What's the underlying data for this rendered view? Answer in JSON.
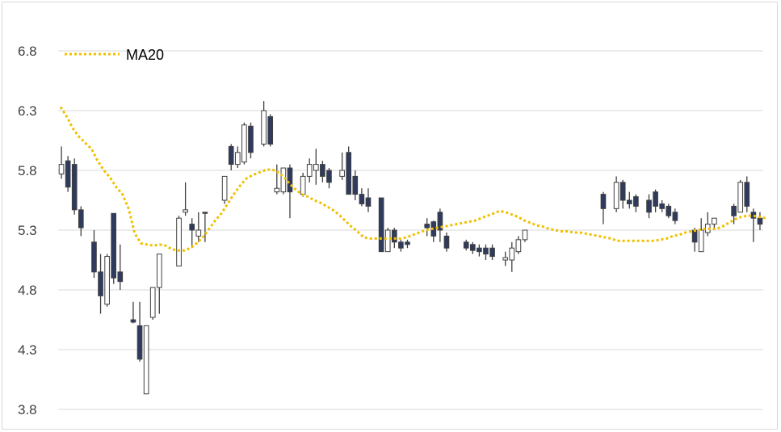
{
  "chart_data": {
    "type": "candlestick",
    "yticks": [
      "3.8",
      "4.3",
      "4.8",
      "5.3",
      "5.8",
      "6.3",
      "6.8"
    ],
    "ylim": [
      3.8,
      6.8
    ],
    "grid": true,
    "legend": {
      "position": "top-left",
      "entries": [
        "MA20"
      ]
    },
    "colors": {
      "up_fill": "#ffffff",
      "down_fill": "#2e3b5e",
      "candle_border": "#404040",
      "ma_line": "#f0c000",
      "grid": "#d9d9d9"
    },
    "series": [
      {
        "name": "MA20",
        "values": [
          6.33,
          6.25,
          6.15,
          6.08,
          6.03,
          5.98,
          5.88,
          5.8,
          5.74,
          5.66,
          5.6,
          5.48,
          5.27,
          5.19,
          5.18,
          5.17,
          5.18,
          5.17,
          5.14,
          5.13,
          5.13,
          5.15,
          5.19,
          5.24,
          5.31,
          5.38,
          5.44,
          5.52,
          5.6,
          5.67,
          5.73,
          5.76,
          5.78,
          5.8,
          5.81,
          5.79,
          5.75,
          5.69,
          5.64,
          5.6,
          5.58,
          5.55,
          5.53,
          5.5,
          5.47,
          5.43,
          5.38,
          5.33,
          5.29,
          5.24,
          5.23,
          5.23,
          5.23,
          5.23,
          5.23,
          5.23,
          5.24,
          5.26,
          5.28,
          5.3,
          5.31,
          5.32,
          5.33,
          5.34,
          5.35,
          5.36,
          5.37,
          5.38,
          5.4,
          5.42,
          5.44,
          5.46,
          5.45,
          5.43,
          5.41,
          5.38,
          5.36,
          5.34,
          5.33,
          5.31,
          5.3,
          5.29,
          5.29,
          5.28,
          5.28,
          5.27,
          5.26,
          5.25,
          5.24,
          5.23,
          5.21,
          5.21,
          5.21,
          5.21,
          5.21,
          5.21,
          5.21,
          5.22,
          5.23,
          5.25,
          5.26,
          5.28,
          5.29,
          5.3,
          5.31,
          5.31,
          5.31,
          5.33,
          5.36,
          5.39,
          5.41,
          5.42,
          5.42,
          5.41,
          5.4
        ]
      }
    ],
    "candles": [
      {
        "open": 5.77,
        "high": 6.0,
        "low": 5.73,
        "close": 5.85
      },
      {
        "open": 5.88,
        "high": 5.92,
        "low": 5.62,
        "close": 5.66
      },
      {
        "open": 5.85,
        "high": 5.9,
        "low": 5.43,
        "close": 5.47
      },
      {
        "open": 5.47,
        "high": 5.5,
        "low": 5.25,
        "close": 5.32
      },
      {
        "open": null,
        "high": null,
        "low": null,
        "close": null
      },
      {
        "open": 5.2,
        "high": 5.3,
        "low": 4.9,
        "close": 4.95
      },
      {
        "open": 4.95,
        "high": 5.1,
        "low": 4.6,
        "close": 4.75
      },
      {
        "open": 4.68,
        "high": 5.1,
        "low": 4.66,
        "close": 5.08
      },
      {
        "open": 5.44,
        "high": 5.44,
        "low": 4.85,
        "close": 4.9
      },
      {
        "open": 4.95,
        "high": 5.18,
        "low": 4.8,
        "close": 4.87
      },
      {
        "open": null,
        "high": null,
        "low": null,
        "close": null
      },
      {
        "open": 4.55,
        "high": 4.7,
        "low": 4.52,
        "close": 4.53
      },
      {
        "open": 4.5,
        "high": 4.7,
        "low": 4.2,
        "close": 4.22
      },
      {
        "open": 3.93,
        "high": 4.5,
        "low": 3.93,
        "close": 4.5
      },
      {
        "open": 4.57,
        "high": 4.82,
        "low": 4.55,
        "close": 4.82
      },
      {
        "open": 4.82,
        "high": 5.1,
        "low": 4.6,
        "close": 5.1
      },
      {
        "open": null,
        "high": null,
        "low": null,
        "close": null
      },
      {
        "open": null,
        "high": null,
        "low": null,
        "close": null
      },
      {
        "open": 5.0,
        "high": 5.42,
        "low": 5.0,
        "close": 5.4
      },
      {
        "open": 5.45,
        "high": 5.7,
        "low": 5.42,
        "close": 5.47
      },
      {
        "open": 5.35,
        "high": 5.4,
        "low": 5.15,
        "close": 5.3
      },
      {
        "open": 5.25,
        "high": 5.45,
        "low": 5.2,
        "close": 5.3
      },
      {
        "open": 5.45,
        "high": 5.45,
        "low": 5.2,
        "close": 5.44
      },
      {
        "open": null,
        "high": null,
        "low": null,
        "close": null
      },
      {
        "open": null,
        "high": null,
        "low": null,
        "close": null
      },
      {
        "open": 5.55,
        "high": 5.75,
        "low": 5.52,
        "close": 5.75
      },
      {
        "open": 6.0,
        "high": 6.02,
        "low": 5.8,
        "close": 5.85
      },
      {
        "open": 5.85,
        "high": 6.0,
        "low": 5.82,
        "close": 5.95
      },
      {
        "open": 5.87,
        "high": 6.2,
        "low": 5.85,
        "close": 6.18
      },
      {
        "open": 6.17,
        "high": 6.2,
        "low": 5.9,
        "close": 5.95
      },
      {
        "open": null,
        "high": null,
        "low": null,
        "close": null
      },
      {
        "open": 6.02,
        "high": 6.38,
        "low": 6.0,
        "close": 6.3
      },
      {
        "open": 6.25,
        "high": 6.27,
        "low": 6.0,
        "close": 6.02
      },
      {
        "open": 5.62,
        "high": 5.85,
        "low": 5.6,
        "close": 5.65
      },
      {
        "open": 5.62,
        "high": 5.82,
        "low": 5.6,
        "close": 5.82
      },
      {
        "open": 5.82,
        "high": 5.85,
        "low": 5.4,
        "close": 5.62
      },
      {
        "open": null,
        "high": null,
        "low": null,
        "close": null
      },
      {
        "open": 5.6,
        "high": 5.78,
        "low": 5.58,
        "close": 5.75
      },
      {
        "open": 5.75,
        "high": 5.9,
        "low": 5.7,
        "close": 5.85
      },
      {
        "open": 5.8,
        "high": 5.98,
        "low": 5.68,
        "close": 5.85
      },
      {
        "open": 5.85,
        "high": 5.88,
        "low": 5.7,
        "close": 5.75
      },
      {
        "open": 5.8,
        "high": 5.82,
        "low": 5.65,
        "close": 5.7
      },
      {
        "open": null,
        "high": null,
        "low": null,
        "close": null
      },
      {
        "open": 5.75,
        "high": 5.95,
        "low": 5.72,
        "close": 5.8
      },
      {
        "open": 5.95,
        "high": 6.0,
        "low": 5.6,
        "close": 5.6
      },
      {
        "open": 5.75,
        "high": 5.8,
        "low": 5.55,
        "close": 5.6
      },
      {
        "open": 5.6,
        "high": 5.65,
        "low": 5.5,
        "close": 5.52
      },
      {
        "open": 5.57,
        "high": 5.65,
        "low": 5.45,
        "close": 5.5
      },
      {
        "open": null,
        "high": null,
        "low": null,
        "close": null
      },
      {
        "open": 5.57,
        "high": 5.57,
        "low": 5.12,
        "close": 5.12
      },
      {
        "open": 5.12,
        "high": 5.32,
        "low": 5.12,
        "close": 5.3
      },
      {
        "open": 5.3,
        "high": 5.32,
        "low": 5.15,
        "close": 5.2
      },
      {
        "open": 5.2,
        "high": 5.22,
        "low": 5.12,
        "close": 5.15
      },
      {
        "open": 5.2,
        "high": 5.22,
        "low": 5.15,
        "close": 5.18
      },
      {
        "open": null,
        "high": null,
        "low": null,
        "close": null
      },
      {
        "open": null,
        "high": null,
        "low": null,
        "close": null
      },
      {
        "open": 5.35,
        "high": 5.4,
        "low": 5.25,
        "close": 5.32
      },
      {
        "open": 5.37,
        "high": 5.38,
        "low": 5.2,
        "close": 5.25
      },
      {
        "open": 5.45,
        "high": 5.48,
        "low": 5.2,
        "close": 5.3
      },
      {
        "open": 5.25,
        "high": 5.28,
        "low": 5.12,
        "close": 5.15
      },
      {
        "open": null,
        "high": null,
        "low": null,
        "close": null
      },
      {
        "open": null,
        "high": null,
        "low": null,
        "close": null
      },
      {
        "open": 5.2,
        "high": 5.22,
        "low": 5.13,
        "close": 5.15
      },
      {
        "open": 5.18,
        "high": 5.2,
        "low": 5.1,
        "close": 5.13
      },
      {
        "open": 5.15,
        "high": 5.18,
        "low": 5.08,
        "close": 5.12
      },
      {
        "open": 5.15,
        "high": 5.18,
        "low": 5.05,
        "close": 5.1
      },
      {
        "open": 5.15,
        "high": 5.18,
        "low": 5.05,
        "close": 5.08
      },
      {
        "open": null,
        "high": null,
        "low": null,
        "close": null
      },
      {
        "open": 5.05,
        "high": 5.12,
        "low": 5.0,
        "close": 5.07
      },
      {
        "open": 5.05,
        "high": 5.2,
        "low": 4.95,
        "close": 5.15
      },
      {
        "open": 5.12,
        "high": 5.25,
        "low": 5.1,
        "close": 5.22
      },
      {
        "open": 5.22,
        "high": 5.3,
        "low": 5.2,
        "close": 5.3
      },
      {
        "open": null,
        "high": null,
        "low": null,
        "close": null
      },
      {
        "open": null,
        "high": null,
        "low": null,
        "close": null
      },
      {
        "open": null,
        "high": null,
        "low": null,
        "close": null
      },
      {
        "open": null,
        "high": null,
        "low": null,
        "close": null
      },
      {
        "open": null,
        "high": null,
        "low": null,
        "close": null
      },
      {
        "open": null,
        "high": null,
        "low": null,
        "close": null
      },
      {
        "open": null,
        "high": null,
        "low": null,
        "close": null
      },
      {
        "open": null,
        "high": null,
        "low": null,
        "close": null
      },
      {
        "open": null,
        "high": null,
        "low": null,
        "close": null
      },
      {
        "open": null,
        "high": null,
        "low": null,
        "close": null
      },
      {
        "open": null,
        "high": null,
        "low": null,
        "close": null
      },
      {
        "open": 5.6,
        "high": 5.62,
        "low": 5.35,
        "close": 5.48
      },
      {
        "open": null,
        "high": null,
        "low": null,
        "close": null
      },
      {
        "open": 5.48,
        "high": 5.75,
        "low": 5.45,
        "close": 5.7
      },
      {
        "open": 5.7,
        "high": 5.72,
        "low": 5.48,
        "close": 5.55
      },
      {
        "open": 5.55,
        "high": 5.62,
        "low": 5.48,
        "close": 5.52
      },
      {
        "open": 5.58,
        "high": 5.6,
        "low": 5.45,
        "close": 5.5
      },
      {
        "open": null,
        "high": null,
        "low": null,
        "close": null
      },
      {
        "open": 5.55,
        "high": 5.6,
        "low": 5.4,
        "close": 5.45
      },
      {
        "open": 5.62,
        "high": 5.64,
        "low": 5.45,
        "close": 5.5
      },
      {
        "open": 5.52,
        "high": 5.55,
        "low": 5.45,
        "close": 5.48
      },
      {
        "open": 5.5,
        "high": 5.52,
        "low": 5.4,
        "close": 5.42
      },
      {
        "open": 5.45,
        "high": 5.48,
        "low": 5.35,
        "close": 5.38
      },
      {
        "open": null,
        "high": null,
        "low": null,
        "close": null
      },
      {
        "open": null,
        "high": null,
        "low": null,
        "close": null
      },
      {
        "open": 5.3,
        "high": 5.32,
        "low": 5.12,
        "close": 5.2
      },
      {
        "open": 5.12,
        "high": 5.4,
        "low": 5.12,
        "close": 5.3
      },
      {
        "open": 5.28,
        "high": 5.45,
        "low": 5.25,
        "close": 5.35
      },
      {
        "open": 5.35,
        "high": 5.4,
        "low": 5.3,
        "close": 5.4
      },
      {
        "open": null,
        "high": null,
        "low": null,
        "close": null
      },
      {
        "open": null,
        "high": null,
        "low": null,
        "close": null
      },
      {
        "open": 5.5,
        "high": 5.52,
        "low": 5.35,
        "close": 5.42
      },
      {
        "open": 5.45,
        "high": 5.72,
        "low": 5.45,
        "close": 5.7
      },
      {
        "open": 5.7,
        "high": 5.75,
        "low": 5.45,
        "close": 5.5
      },
      {
        "open": 5.45,
        "high": 5.48,
        "low": 5.2,
        "close": 5.4
      },
      {
        "open": 5.4,
        "high": 5.45,
        "low": 5.3,
        "close": 5.35
      }
    ]
  }
}
